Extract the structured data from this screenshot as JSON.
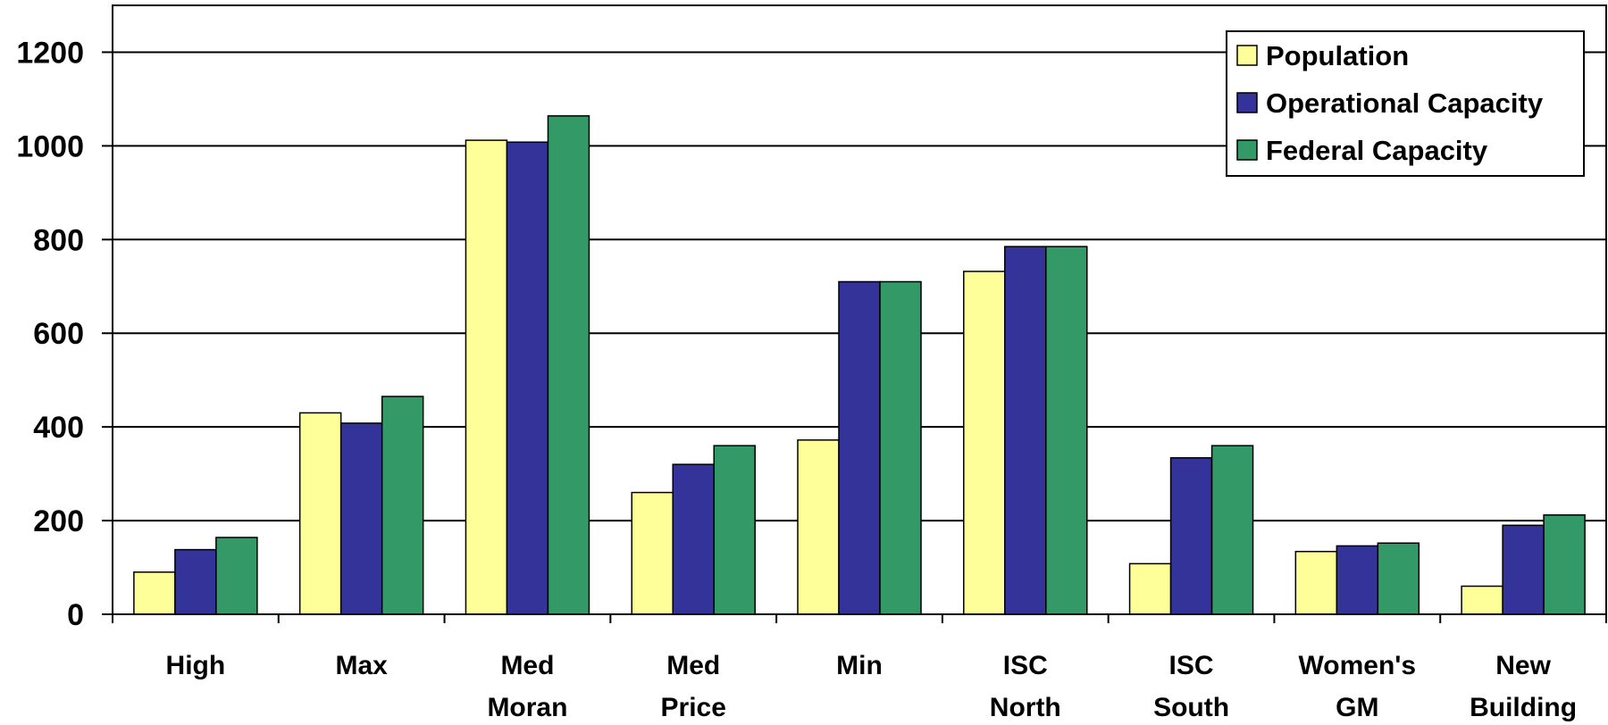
{
  "chart_data": {
    "type": "bar",
    "title": "",
    "xlabel": "",
    "ylabel": "",
    "ylim": [
      0,
      1300
    ],
    "yticks": [
      0,
      200,
      400,
      600,
      800,
      1000,
      1200
    ],
    "grid": true,
    "legend_position": "top-right",
    "categories": [
      [
        "High"
      ],
      [
        "Max"
      ],
      [
        "Med",
        "Moran"
      ],
      [
        "Med",
        "Price"
      ],
      [
        "Min"
      ],
      [
        "ISC",
        "North"
      ],
      [
        "ISC",
        "South"
      ],
      [
        "Women's",
        "GM"
      ],
      [
        "New",
        "Building"
      ]
    ],
    "series": [
      {
        "name": "Population",
        "color": "#FFFF99",
        "values": [
          90,
          430,
          1012,
          260,
          372,
          732,
          108,
          134,
          60
        ]
      },
      {
        "name": "Operational Capacity",
        "color": "#333399",
        "values": [
          138,
          408,
          1008,
          320,
          710,
          785,
          334,
          146,
          190
        ]
      },
      {
        "name": "Federal Capacity",
        "color": "#339966",
        "values": [
          164,
          465,
          1064,
          360,
          710,
          785,
          360,
          152,
          212
        ]
      }
    ]
  }
}
